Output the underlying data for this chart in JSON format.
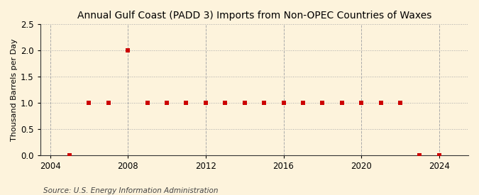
{
  "title": "Annual Gulf Coast (PADD 3) Imports from Non-OPEC Countries of Waxes",
  "ylabel": "Thousand Barrels per Day",
  "source": "Source: U.S. Energy Information Administration",
  "background_color": "#fdf3dc",
  "plot_background_color": "#fdf3dc",
  "xlim": [
    2003.5,
    2025.5
  ],
  "ylim": [
    0.0,
    2.5
  ],
  "yticks": [
    0.0,
    0.5,
    1.0,
    1.5,
    2.0,
    2.5
  ],
  "xticks": [
    2004,
    2008,
    2012,
    2016,
    2020,
    2024
  ],
  "hgrid_color": "#aaaaaa",
  "vgrid_color": "#aaaaaa",
  "data_color": "#cc0000",
  "years": [
    2005,
    2006,
    2007,
    2008,
    2009,
    2010,
    2011,
    2012,
    2013,
    2014,
    2015,
    2016,
    2017,
    2018,
    2019,
    2020,
    2021,
    2022,
    2023,
    2024
  ],
  "values": [
    0.0,
    1.0,
    1.0,
    2.0,
    1.0,
    1.0,
    1.0,
    1.0,
    1.0,
    1.0,
    1.0,
    1.0,
    1.0,
    1.0,
    1.0,
    1.0,
    1.0,
    1.0,
    0.0,
    0.0
  ],
  "marker_size": 18,
  "title_fontsize": 10,
  "label_fontsize": 8,
  "tick_fontsize": 8.5,
  "source_fontsize": 7.5
}
